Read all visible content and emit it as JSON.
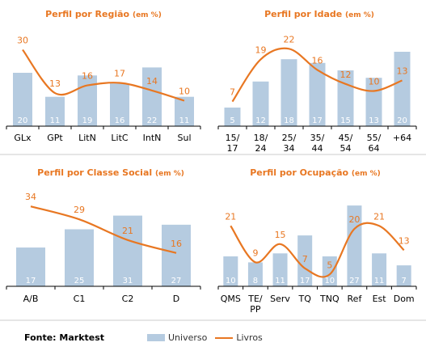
{
  "footer": {
    "source": "Fonte: Marktest"
  },
  "legend": {
    "bar_label": "Universo",
    "line_label": "Livros"
  },
  "colors": {
    "bar": "#b5cbe0",
    "line": "#e87722",
    "title": "#e87722",
    "bar_label": "#ffffff",
    "axis": "#000000"
  },
  "chart_data": [
    {
      "type": "bar",
      "title": "Perfil por Região",
      "title_unit": "(em %)",
      "categories": [
        "GLx",
        "GPt",
        "LitN",
        "LitC",
        "IntN",
        "Sul"
      ],
      "series": [
        {
          "name": "Universo",
          "type": "bar",
          "values": [
            20,
            11,
            19,
            16,
            22,
            11
          ]
        },
        {
          "name": "Livros",
          "type": "line",
          "values": [
            30,
            13,
            16,
            17,
            14,
            10
          ]
        }
      ]
    },
    {
      "type": "bar",
      "title": "Perfil por Idade",
      "title_unit": "(em %)",
      "categories": [
        "15/\n17",
        "18/\n24",
        "25/\n34",
        "35/\n44",
        "45/\n54",
        "55/\n64",
        "+64"
      ],
      "series": [
        {
          "name": "Universo",
          "type": "bar",
          "values": [
            5,
            12,
            18,
            17,
            15,
            13,
            20
          ]
        },
        {
          "name": "Livros",
          "type": "line",
          "values": [
            7,
            19,
            22,
            16,
            12,
            10,
            13
          ]
        }
      ]
    },
    {
      "type": "bar",
      "title": "Perfil por Classe Social",
      "title_unit": "(em %)",
      "categories": [
        "A/B",
        "C1",
        "C2",
        "D"
      ],
      "series": [
        {
          "name": "Universo",
          "type": "bar",
          "values": [
            17,
            25,
            31,
            27
          ]
        },
        {
          "name": "Livros",
          "type": "line",
          "values": [
            34,
            29,
            21,
            16
          ]
        }
      ]
    },
    {
      "type": "bar",
      "title": "Perfil por Ocupação",
      "title_unit": "(em %)",
      "categories": [
        "QMS",
        "TE/\nPP",
        "Serv",
        "TQ",
        "TNQ",
        "Ref",
        "Est",
        "Dom"
      ],
      "series": [
        {
          "name": "Universo",
          "type": "bar",
          "values": [
            10,
            8,
            11,
            17,
            10,
            27,
            11,
            7
          ]
        },
        {
          "name": "Livros",
          "type": "line",
          "values": [
            21,
            9,
            15,
            7,
            5,
            20,
            21,
            13
          ]
        }
      ]
    }
  ]
}
